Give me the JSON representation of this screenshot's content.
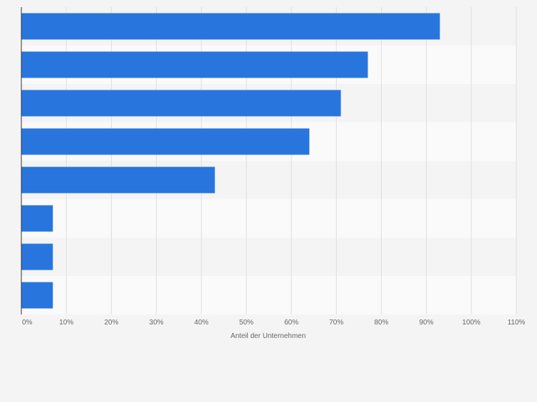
{
  "chart_data": {
    "type": "bar",
    "orientation": "horizontal",
    "categories": [
      "",
      "",
      "",
      "",
      "",
      "",
      "",
      ""
    ],
    "values": [
      93,
      77,
      71,
      64,
      43,
      7,
      7,
      7
    ],
    "xlabel": "Anteil der Unternehmen",
    "ylabel": "",
    "xlim": [
      0,
      110
    ],
    "x_ticks": [
      "0%",
      "10%",
      "20%",
      "30%",
      "40%",
      "50%",
      "60%",
      "70%",
      "80%",
      "90%",
      "100%",
      "110%"
    ],
    "grid": true,
    "legend": "none",
    "colors": {
      "bar": "#2876dd",
      "background": "#f4f4f4",
      "band_light": "#fafafa",
      "band_dark": "#f4f4f4",
      "grid": "#dedede",
      "axis": "#333333",
      "tick_text": "#666666"
    }
  }
}
